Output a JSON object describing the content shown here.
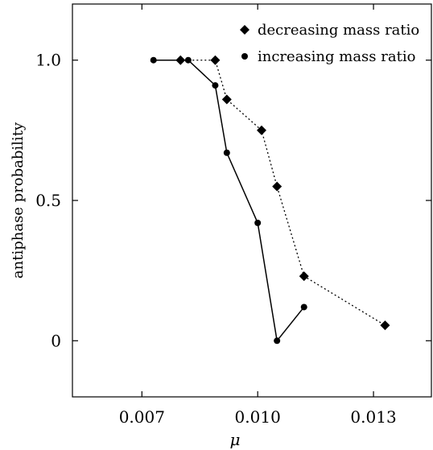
{
  "chart_data": {
    "type": "line",
    "xlabel": "μ",
    "ylabel": "antiphase probability",
    "xlim": [
      0.0052,
      0.0145
    ],
    "ylim": [
      -0.2,
      1.2
    ],
    "x_ticks": [
      0.007,
      0.01,
      0.013
    ],
    "x_tick_labels": [
      "0.007",
      "0.010",
      "0.013"
    ],
    "y_ticks": [
      0,
      0.5,
      1.0
    ],
    "y_tick_labels": [
      "0",
      "0.5",
      "1.0"
    ],
    "legend_position": "top-right",
    "grid": false,
    "series": [
      {
        "name": "decreasing mass ratio",
        "marker": "diamond",
        "line_style": "dotted",
        "color": "#000000",
        "x": [
          0.008,
          0.0089,
          0.0092,
          0.0101,
          0.0105,
          0.0112,
          0.0133
        ],
        "y": [
          1.0,
          1.0,
          0.86,
          0.75,
          0.55,
          0.23,
          0.055
        ]
      },
      {
        "name": "increasing mass ratio",
        "marker": "circle",
        "line_style": "solid",
        "color": "#000000",
        "x": [
          0.0073,
          0.0082,
          0.0089,
          0.0092,
          0.01,
          0.0105,
          0.0112
        ],
        "y": [
          1.0,
          1.0,
          0.91,
          0.67,
          0.42,
          0.0,
          0.12
        ]
      }
    ]
  }
}
